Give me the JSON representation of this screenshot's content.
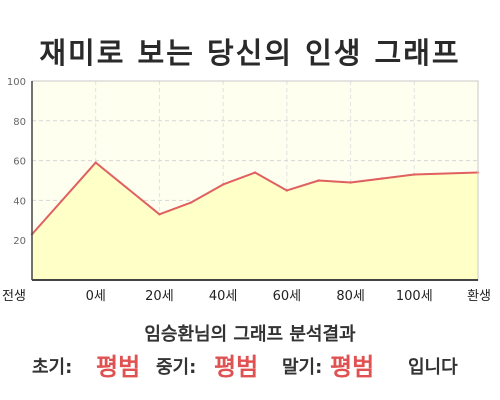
{
  "title": "재미로 보는 당신의 인생 그래프",
  "chart_data": {
    "type": "area",
    "x_categories": [
      "전생",
      "0세",
      "20세",
      "40세",
      "60세",
      "80세",
      "100세",
      "환생"
    ],
    "x": [
      -20,
      0,
      20,
      30,
      40,
      50,
      60,
      70,
      80,
      90,
      100,
      120
    ],
    "values": [
      23,
      59,
      33,
      39,
      48,
      54,
      45,
      50,
      49,
      51,
      53,
      54
    ],
    "ylim": [
      0,
      100
    ],
    "yticks": [
      20,
      40,
      60,
      80,
      100
    ],
    "grid": true,
    "line_color": "#e06060",
    "fill_color": "#ffffc8",
    "plot_bg": "#fffff0"
  },
  "result": {
    "heading": "임승환님의 그래프 분석결과",
    "early_label": "초기:",
    "early_value": "평범",
    "mid_label": "중기:",
    "mid_value": "평범",
    "late_label": "말기:",
    "late_value": "평범",
    "suffix": "입니다"
  },
  "colors": {
    "highlight": "#e05252"
  }
}
